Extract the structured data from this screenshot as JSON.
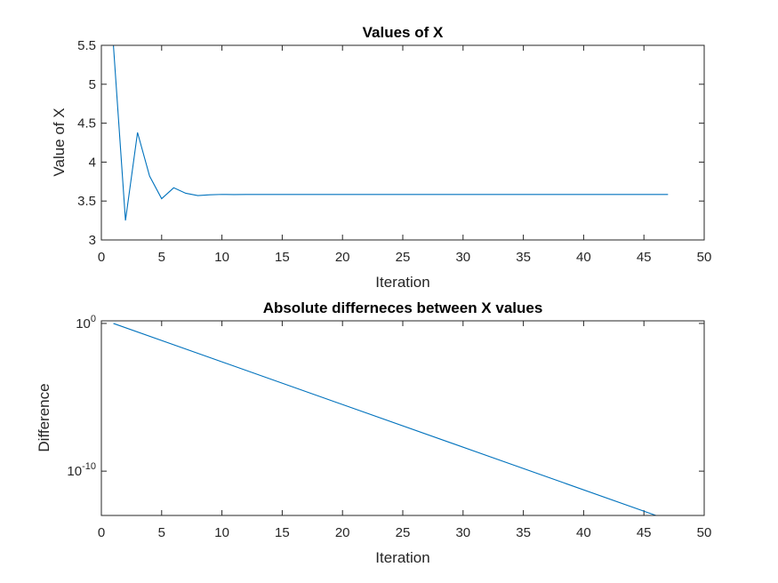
{
  "colors": {
    "series": "#0072BD",
    "axis": "#262626"
  },
  "chart_data": [
    {
      "type": "line",
      "title": "Values of X",
      "xlabel": "Iteration",
      "ylabel": "Value of X",
      "xlim": [
        0,
        50
      ],
      "ylim": [
        3,
        5.5
      ],
      "yscale": "linear",
      "grid": false,
      "xticks": [
        0,
        5,
        10,
        15,
        20,
        25,
        30,
        35,
        40,
        45,
        50
      ],
      "yticks": [
        3,
        3.5,
        4,
        4.5,
        5,
        5.5
      ],
      "ytick_labels": [
        "3",
        "3.5",
        "4",
        "4.5",
        "5",
        "5.5"
      ],
      "series": [
        {
          "x": [
            1,
            2,
            3,
            4,
            5,
            6,
            7,
            8,
            9,
            10,
            11,
            12,
            13,
            14,
            15,
            16,
            17,
            18,
            19,
            20,
            21,
            22,
            23,
            24,
            25,
            26,
            27,
            28,
            29,
            30,
            31,
            32,
            33,
            34,
            35,
            36,
            37,
            38,
            39,
            40,
            41,
            42,
            43,
            44,
            45,
            46,
            47
          ],
          "values": [
            5.5,
            3.25,
            4.38,
            3.82,
            3.53,
            3.67,
            3.6,
            3.57,
            3.58,
            3.585,
            3.583,
            3.584,
            3.584,
            3.584,
            3.584,
            3.584,
            3.584,
            3.584,
            3.584,
            3.584,
            3.584,
            3.584,
            3.584,
            3.584,
            3.584,
            3.584,
            3.584,
            3.584,
            3.584,
            3.584,
            3.584,
            3.584,
            3.584,
            3.584,
            3.584,
            3.584,
            3.584,
            3.584,
            3.584,
            3.584,
            3.584,
            3.584,
            3.584,
            3.584,
            3.584,
            3.584,
            3.584
          ]
        }
      ]
    },
    {
      "type": "line",
      "title": "Absolute differneces between X values",
      "xlabel": "Iteration",
      "ylabel": "Difference",
      "xlim": [
        0,
        50
      ],
      "ylim": [
        1e-13,
        1.5
      ],
      "yscale": "log",
      "grid": false,
      "xticks": [
        0,
        5,
        10,
        15,
        20,
        25,
        30,
        35,
        40,
        45,
        50
      ],
      "yticks": [
        1,
        1e-10
      ],
      "ytick_labels": [
        {
          "base": "10",
          "exp": "0"
        },
        {
          "base": "10",
          "exp": "-10"
        }
      ],
      "series": [
        {
          "x": [
            1,
            46
          ],
          "values": [
            1,
            1e-13
          ]
        }
      ]
    }
  ]
}
